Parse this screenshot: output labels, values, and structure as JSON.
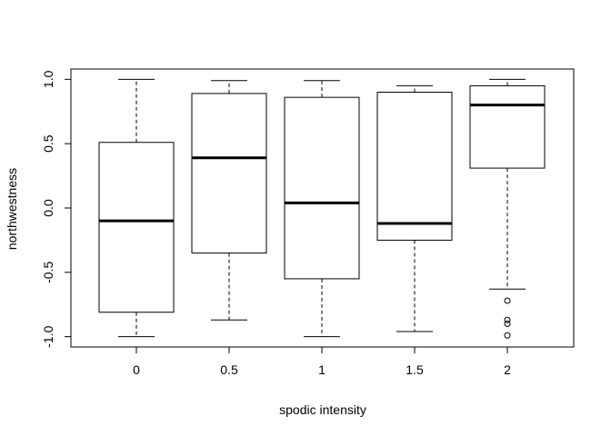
{
  "chart_data": {
    "type": "box",
    "title": "",
    "xlabel": "spodic intensity",
    "ylabel": "northwestness",
    "ylim": [
      -1.08,
      1.08
    ],
    "yticks": [
      {
        "value": -1.0,
        "label": "-1.0"
      },
      {
        "value": -0.5,
        "label": "-0.5"
      },
      {
        "value": 0.0,
        "label": "0.0"
      },
      {
        "value": 0.5,
        "label": "0.5"
      },
      {
        "value": 1.0,
        "label": "1.0"
      }
    ],
    "categories": [
      "0",
      "0.5",
      "1",
      "1.5",
      "2"
    ],
    "boxes": [
      {
        "category": "0",
        "whisker_low": -1.0,
        "q1": -0.81,
        "median": -0.1,
        "q3": 0.51,
        "whisker_high": 1.0,
        "outliers": []
      },
      {
        "category": "0.5",
        "whisker_low": -0.87,
        "q1": -0.35,
        "median": 0.39,
        "q3": 0.89,
        "whisker_high": 0.99,
        "outliers": []
      },
      {
        "category": "1",
        "whisker_low": -1.0,
        "q1": -0.55,
        "median": 0.04,
        "q3": 0.86,
        "whisker_high": 0.99,
        "outliers": []
      },
      {
        "category": "1.5",
        "whisker_low": -0.96,
        "q1": -0.25,
        "median": -0.12,
        "q3": 0.9,
        "whisker_high": 0.95,
        "outliers": []
      },
      {
        "category": "2",
        "whisker_low": -0.63,
        "q1": 0.31,
        "median": 0.8,
        "q3": 0.95,
        "whisker_high": 1.0,
        "outliers": [
          -0.72,
          -0.87,
          -0.9,
          -0.99
        ]
      }
    ]
  }
}
